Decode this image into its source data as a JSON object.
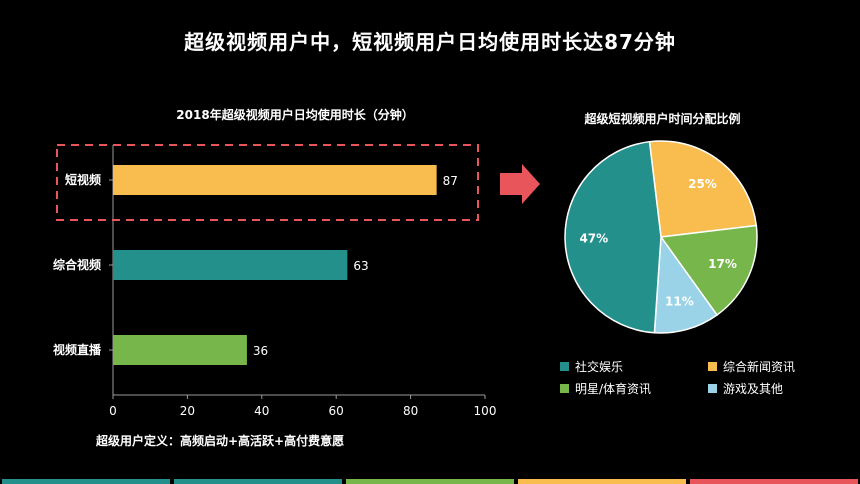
{
  "title": "超级视频用户中，短视频用户日均使用时长达87分钟",
  "definition": "超级用户定义：高频启动+高活跃+高付费意愿",
  "chart_data": [
    {
      "type": "bar",
      "orientation": "horizontal",
      "title": "2018年超级视频用户日均使用时长（分钟）",
      "categories": [
        "短视频",
        "综合视频",
        "视频直播"
      ],
      "values": [
        87,
        63,
        36
      ],
      "colors": [
        "#F9BC4F",
        "#23908C",
        "#76B64A"
      ],
      "xlim": [
        0,
        100
      ],
      "xticks": [
        0,
        20,
        40,
        60,
        80,
        100
      ],
      "highlight": "短视频"
    },
    {
      "type": "pie",
      "title": "超级短视频用户时间分配比例",
      "labels": [
        "社交娱乐",
        "综合新闻资讯",
        "明星/体育资讯",
        "游戏及其他"
      ],
      "values": [
        47,
        25,
        17,
        11
      ],
      "value_labels": [
        "47%",
        "25%",
        "17%",
        "11%"
      ],
      "colors": [
        "#23908C",
        "#F9BC4F",
        "#76B64A",
        "#9AD3E7"
      ]
    }
  ],
  "footer_colors": [
    "#23908C",
    "#23908C",
    "#76B64A",
    "#F9BC4F",
    "#E8555A"
  ]
}
